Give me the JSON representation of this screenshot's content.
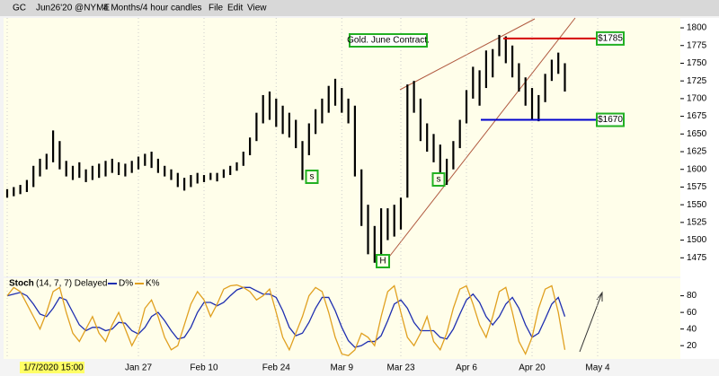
{
  "header": {
    "symbol": "GC",
    "contract": "Jun26'20 @NYME",
    "period": "4 Months/4 hour candles",
    "menu": [
      "File",
      "Edit",
      "View"
    ]
  },
  "chart_data": [
    {
      "type": "candlestick",
      "color": "#000000",
      "ylim": [
        1450,
        1814
      ],
      "yticks": [
        1475,
        1500,
        1525,
        1550,
        1575,
        1600,
        1625,
        1650,
        1675,
        1700,
        1725,
        1750,
        1775,
        1800
      ],
      "low": [
        1560,
        1562,
        1565,
        1568,
        1575,
        1590,
        1600,
        1610,
        1600,
        1590,
        1585,
        1588,
        1582,
        1585,
        1588,
        1590,
        1595,
        1592,
        1590,
        1595,
        1600,
        1605,
        1602,
        1595,
        1590,
        1585,
        1575,
        1570,
        1575,
        1580,
        1582,
        1585,
        1583,
        1588,
        1592,
        1598,
        1605,
        1620,
        1640,
        1665,
        1670,
        1660,
        1650,
        1645,
        1630,
        1585,
        1620,
        1650,
        1665,
        1680,
        1690,
        1680,
        1665,
        1590,
        1520,
        1480,
        1468,
        1480,
        1500,
        1505,
        1515,
        1560,
        1680,
        1640,
        1625,
        1610,
        1595,
        1578,
        1600,
        1630,
        1665,
        1700,
        1690,
        1715,
        1730,
        1760,
        1750,
        1730,
        1710,
        1690,
        1670,
        1668,
        1695,
        1725,
        1735,
        1710,
        null,
        null,
        null,
        null,
        null
      ],
      "high": [
        1572,
        1575,
        1578,
        1585,
        1605,
        1615,
        1622,
        1655,
        1640,
        1612,
        1605,
        1610,
        1600,
        1605,
        1608,
        1612,
        1615,
        1610,
        1608,
        1612,
        1618,
        1622,
        1625,
        1615,
        1605,
        1600,
        1595,
        1588,
        1592,
        1595,
        1592,
        1595,
        1595,
        1600,
        1605,
        1610,
        1625,
        1645,
        1680,
        1705,
        1710,
        1700,
        1690,
        1680,
        1670,
        1640,
        1665,
        1685,
        1700,
        1718,
        1728,
        1715,
        1700,
        1690,
        1600,
        1550,
        1520,
        1545,
        1545,
        1550,
        1560,
        1720,
        1725,
        1700,
        1665,
        1650,
        1635,
        1615,
        1640,
        1670,
        1712,
        1745,
        1740,
        1768,
        1770,
        1790,
        1788,
        1775,
        1750,
        1730,
        1715,
        1705,
        1735,
        1755,
        1765,
        1750,
        null,
        null,
        null,
        null,
        null
      ],
      "annotations": [
        "Gold. June Contract.",
        "s",
        "s",
        "H"
      ],
      "levels": [
        {
          "value": 1785,
          "label": "$1785",
          "color": "#d40000"
        },
        {
          "value": 1670,
          "label": "$1670",
          "color": "#0000cc"
        }
      ]
    },
    {
      "type": "line",
      "title": "Stoch",
      "params": "(14, 7, 7) Delayed",
      "ylim": [
        4,
        99
      ],
      "yticks": [
        20,
        40,
        60,
        80
      ],
      "categories": [
        "1/7/2020 15:00",
        null,
        null,
        null,
        null,
        null,
        null,
        null,
        null,
        null,
        null,
        null,
        null,
        null,
        null,
        null,
        null,
        null,
        null,
        null,
        "Jan 27",
        null,
        null,
        null,
        null,
        null,
        null,
        null,
        null,
        null,
        "Feb 10",
        null,
        null,
        null,
        null,
        null,
        null,
        null,
        null,
        null,
        null,
        "Feb 24",
        null,
        null,
        null,
        null,
        null,
        null,
        null,
        null,
        null,
        "Mar 9",
        null,
        null,
        null,
        null,
        null,
        null,
        null,
        null,
        "Mar 23",
        null,
        null,
        null,
        null,
        null,
        null,
        null,
        null,
        null,
        "Apr 6",
        null,
        null,
        null,
        null,
        null,
        null,
        null,
        null,
        null,
        "Apr 20",
        null,
        null,
        null,
        null,
        null,
        null,
        null,
        null,
        null,
        "May 4"
      ],
      "series": [
        {
          "name": "D%",
          "color": "#1f2fb0",
          "values": [
            80,
            82,
            84,
            80,
            70,
            58,
            55,
            65,
            78,
            75,
            60,
            45,
            38,
            42,
            42,
            38,
            40,
            48,
            47,
            38,
            34,
            42,
            55,
            60,
            50,
            38,
            28,
            30,
            42,
            60,
            72,
            72,
            68,
            72,
            80,
            87,
            90,
            90,
            86,
            82,
            82,
            78,
            62,
            42,
            32,
            35,
            48,
            65,
            78,
            78,
            62,
            42,
            26,
            18,
            20,
            25,
            25,
            32,
            50,
            70,
            75,
            65,
            48,
            38,
            38,
            38,
            30,
            28,
            40,
            58,
            75,
            82,
            72,
            55,
            45,
            55,
            70,
            78,
            65,
            45,
            30,
            35,
            52,
            70,
            78,
            55,
            null,
            null,
            null,
            null,
            null
          ]
        },
        {
          "name": "K%",
          "color": "#e0a020",
          "values": [
            80,
            90,
            85,
            70,
            55,
            40,
            60,
            85,
            90,
            60,
            35,
            25,
            40,
            55,
            35,
            25,
            45,
            60,
            40,
            20,
            35,
            65,
            75,
            55,
            30,
            15,
            20,
            45,
            70,
            85,
            75,
            55,
            70,
            88,
            92,
            93,
            90,
            85,
            75,
            80,
            88,
            60,
            30,
            15,
            35,
            55,
            80,
            90,
            85,
            60,
            30,
            10,
            8,
            15,
            35,
            30,
            20,
            55,
            85,
            92,
            60,
            30,
            20,
            35,
            55,
            25,
            15,
            35,
            65,
            88,
            92,
            70,
            45,
            30,
            55,
            85,
            90,
            60,
            25,
            10,
            30,
            65,
            88,
            92,
            60,
            15,
            null,
            null,
            null,
            null,
            null
          ]
        }
      ]
    }
  ]
}
